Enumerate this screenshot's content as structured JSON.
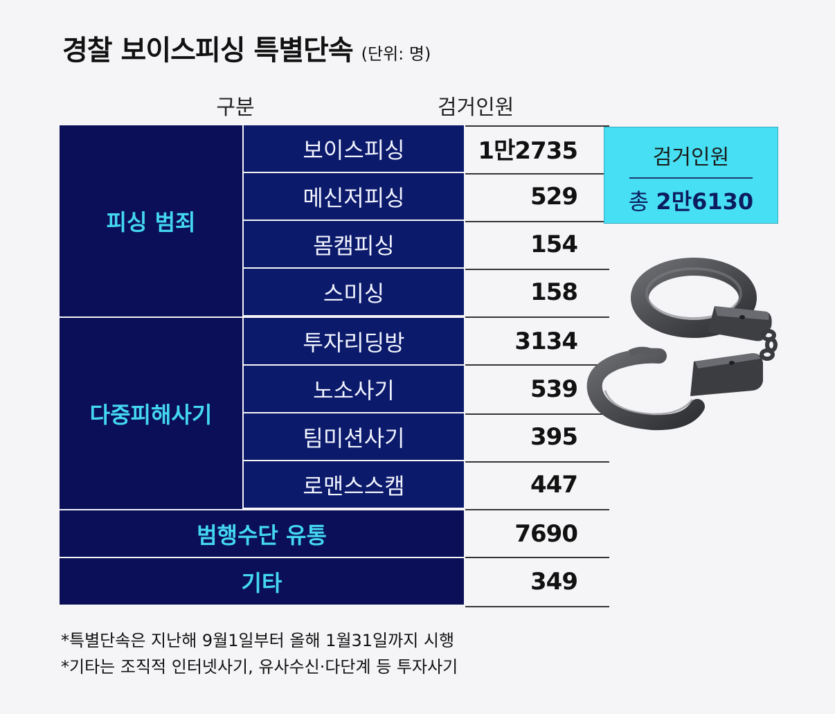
{
  "title": "경찰 보이스피싱 특별단속",
  "unit": "(단위: 명)",
  "headers": {
    "category": "구분",
    "count": "검거인원"
  },
  "chart_data": {
    "type": "table",
    "columns": [
      "구분",
      "검거인원"
    ],
    "groups": [
      {
        "name": "피싱 범죄",
        "rows": [
          {
            "label": "보이스피싱",
            "value": "1만2735"
          },
          {
            "label": "메신저피싱",
            "value": "529"
          },
          {
            "label": "몸캠피싱",
            "value": "154"
          },
          {
            "label": "스미싱",
            "value": "158"
          }
        ]
      },
      {
        "name": "다중피해사기",
        "rows": [
          {
            "label": "투자리딩방",
            "value": "3134"
          },
          {
            "label": "노소사기",
            "value": "539"
          },
          {
            "label": "팀미션사기",
            "value": "395"
          },
          {
            "label": "로맨스스캠",
            "value": "447"
          }
        ]
      }
    ],
    "single_rows": [
      {
        "label": "범행수단 유통",
        "value": "7690"
      },
      {
        "label": "기타",
        "value": "349"
      }
    ]
  },
  "total": {
    "label": "검거인원",
    "prefix": "총",
    "value": "2만6130"
  },
  "notes": [
    "*특별단속은 지난해 9월1일부터 올해 1월31일까지 시행",
    "*기타는 조직적 인터넷사기, 유사수신·다단계 등 투자사기"
  ],
  "colors": {
    "navy": "#0a0f57",
    "subnavy": "#0b1a6a",
    "cyan_text": "#44d7f2",
    "total_box": "#47dff3"
  },
  "icons": [
    "handcuffs-icon"
  ]
}
